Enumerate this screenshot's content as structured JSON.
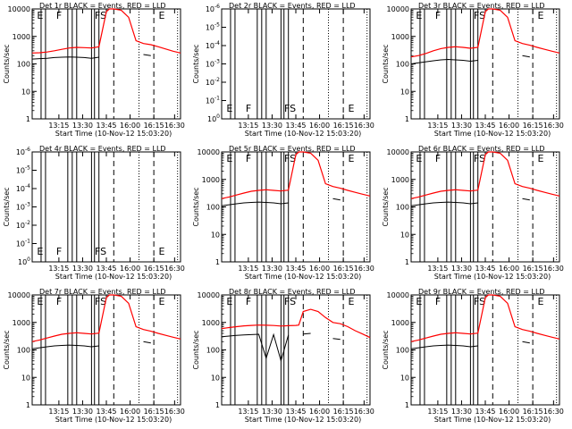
{
  "chart_data": {
    "type": "line",
    "time_ticks": [
      "13:15",
      "13:30",
      "13:45",
      "16:00",
      "16:15",
      "16:30"
    ],
    "xlabel": "Start Time (10-Nov-12 15:03:20)",
    "ylabel": "Counts/sec",
    "log_ticks": [
      {
        "label": "1",
        "value": 1
      },
      {
        "label": "10",
        "value": 10
      },
      {
        "label": "100",
        "value": 100
      },
      {
        "label": "1000",
        "value": 1000
      },
      {
        "label": "10000",
        "value": 10000
      }
    ],
    "empty_ticks": [
      {
        "base": "10",
        "exp": "0"
      },
      {
        "base": "10",
        "exp": "-1"
      },
      {
        "base": "10",
        "exp": "-2"
      },
      {
        "base": "10",
        "exp": "-3"
      },
      {
        "base": "10",
        "exp": "-4"
      },
      {
        "base": "10",
        "exp": "-5"
      },
      {
        "base": "10",
        "exp": "-6"
      }
    ],
    "flags": {
      "E": "E",
      "F": "F",
      "S": "S",
      "FS": "FS"
    },
    "series_colors": {
      "events": "#000000",
      "lld": "#ff0000"
    },
    "time_x": [
      0.0,
      0.05,
      0.1,
      0.15,
      0.2,
      0.25,
      0.3,
      0.35,
      0.4,
      0.45,
      0.5,
      0.52,
      0.55,
      0.6,
      0.65,
      0.7,
      0.75,
      0.8,
      0.85,
      0.9,
      0.95,
      1.0
    ],
    "panels": [
      {
        "title": "Det 1r BLACK = Events, RED = LLD",
        "empty": false,
        "red_variant": "saturate",
        "red": [
          250,
          255,
          270,
          300,
          340,
          380,
          400,
          390,
          380,
          420,
          8000,
          15000,
          12000,
          9000,
          5000,
          700,
          550,
          500,
          420,
          350,
          290,
          250
        ],
        "black": [
          150,
          155,
          160,
          170,
          175,
          180,
          175,
          170,
          160,
          175,
          0,
          0,
          0,
          0,
          0,
          0,
          220,
          200,
          0,
          0,
          0,
          0
        ]
      },
      {
        "title": "Det 2r BLACK = Events, RED = LLD",
        "empty": true
      },
      {
        "title": "Det 3r BLACK = Events, RED = LLD",
        "empty": false,
        "red_variant": "saturate",
        "red": [
          180,
          200,
          240,
          300,
          360,
          400,
          420,
          400,
          370,
          400,
          8000,
          15000,
          12000,
          9000,
          5000,
          700,
          550,
          480,
          400,
          340,
          290,
          250
        ],
        "black": [
          100,
          110,
          120,
          130,
          140,
          145,
          140,
          135,
          125,
          135,
          0,
          0,
          0,
          0,
          0,
          0,
          200,
          180,
          0,
          0,
          0,
          0
        ]
      },
      {
        "title": "Det 4r BLACK = Events, RED = LLD",
        "empty": true
      },
      {
        "title": "Det 5r BLACK = Events, RED = LLD",
        "empty": false,
        "red_variant": "saturate",
        "red": [
          200,
          230,
          270,
          320,
          370,
          400,
          420,
          400,
          380,
          410,
          8000,
          15000,
          12000,
          9000,
          5000,
          700,
          550,
          480,
          400,
          340,
          290,
          250
        ],
        "black": [
          110,
          120,
          130,
          140,
          145,
          150,
          145,
          140,
          130,
          140,
          0,
          0,
          0,
          0,
          0,
          0,
          200,
          180,
          0,
          0,
          0,
          0
        ]
      },
      {
        "title": "Det 6r BLACK = Events, RED = LLD",
        "empty": false,
        "red_variant": "saturate",
        "red": [
          200,
          230,
          270,
          320,
          370,
          400,
          420,
          400,
          380,
          410,
          8000,
          15000,
          12000,
          9000,
          5000,
          700,
          550,
          480,
          400,
          340,
          290,
          250
        ],
        "black": [
          110,
          120,
          130,
          140,
          145,
          150,
          145,
          140,
          130,
          140,
          0,
          0,
          0,
          0,
          0,
          0,
          200,
          180,
          0,
          0,
          0,
          0
        ]
      },
      {
        "title": "Det 7r BLACK = Events, RED = LLD",
        "empty": false,
        "red_variant": "saturate",
        "red": [
          200,
          230,
          270,
          320,
          370,
          400,
          420,
          400,
          380,
          410,
          8000,
          15000,
          12000,
          9000,
          5000,
          700,
          550,
          480,
          400,
          340,
          290,
          250
        ],
        "black": [
          110,
          120,
          130,
          140,
          145,
          150,
          145,
          140,
          130,
          140,
          0,
          0,
          0,
          0,
          0,
          0,
          200,
          180,
          0,
          0,
          0,
          0
        ]
      },
      {
        "title": "Det 8r BLACK = Events, RED = LLD",
        "empty": false,
        "red_variant": "flat",
        "red": [
          600,
          650,
          700,
          750,
          780,
          800,
          790,
          770,
          740,
          760,
          780,
          800,
          2500,
          3000,
          2500,
          1500,
          1000,
          900,
          700,
          500,
          380,
          280
        ],
        "black": [
          300,
          320,
          340,
          350,
          360,
          370,
          50,
          360,
          40,
          350,
          0,
          0,
          380,
          400,
          0,
          0,
          260,
          240,
          0,
          0,
          0,
          0
        ]
      },
      {
        "title": "Det 9r BLACK = Events, RED = LLD",
        "empty": false,
        "red_variant": "saturate",
        "red": [
          200,
          230,
          270,
          320,
          370,
          400,
          420,
          400,
          380,
          410,
          8000,
          15000,
          12000,
          9000,
          5000,
          700,
          550,
          480,
          400,
          340,
          290,
          250
        ],
        "black": [
          110,
          120,
          130,
          140,
          145,
          150,
          145,
          140,
          130,
          140,
          0,
          0,
          0,
          0,
          0,
          0,
          200,
          180,
          0,
          0,
          0,
          0
        ]
      }
    ]
  }
}
